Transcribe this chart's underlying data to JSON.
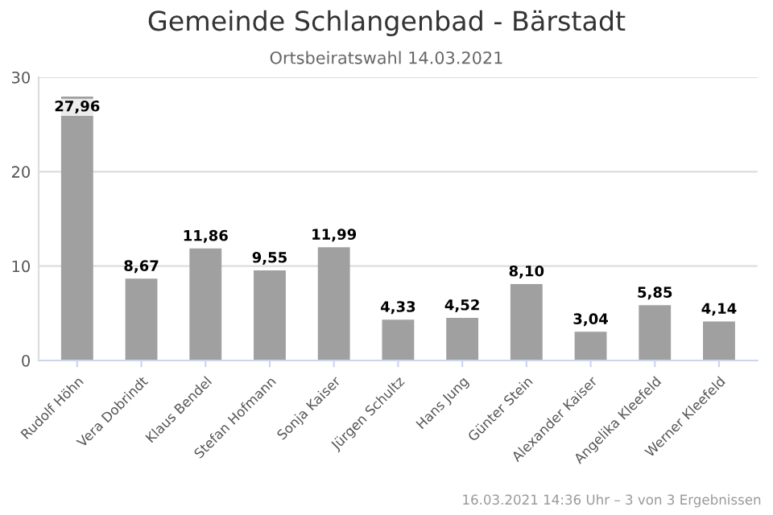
{
  "chart_data": {
    "type": "bar",
    "title": "Gemeinde Schlangenbad - Bärstadt",
    "subtitle": "Ortsbeiratswahl 14.03.2021",
    "categories": [
      "Rudolf Höhn",
      "Vera Dobrindt",
      "Klaus Bendel",
      "Stefan Hofmann",
      "Sonja Kaiser",
      "Jürgen Schultz",
      "Hans Jung",
      "Günter Stein",
      "Alexander Kaiser",
      "Angelika Kleefeld",
      "Werner Kleefeld"
    ],
    "values": [
      27.96,
      8.67,
      11.86,
      9.55,
      11.99,
      4.33,
      4.52,
      8.1,
      3.04,
      5.85,
      4.14
    ],
    "value_labels": [
      "27,96",
      "8,67",
      "11,86",
      "9,55",
      "11,99",
      "4,33",
      "4,52",
      "8,10",
      "3,04",
      "5,85",
      "4,14"
    ],
    "color": "#a0a0a0",
    "ylim": [
      0,
      30
    ],
    "yticks": [
      0,
      10,
      20,
      30
    ],
    "grid": "y",
    "legend": false,
    "annotations": [
      "16.03.2021 14:36 Uhr – 3 von 3 Ergebnissen"
    ]
  }
}
